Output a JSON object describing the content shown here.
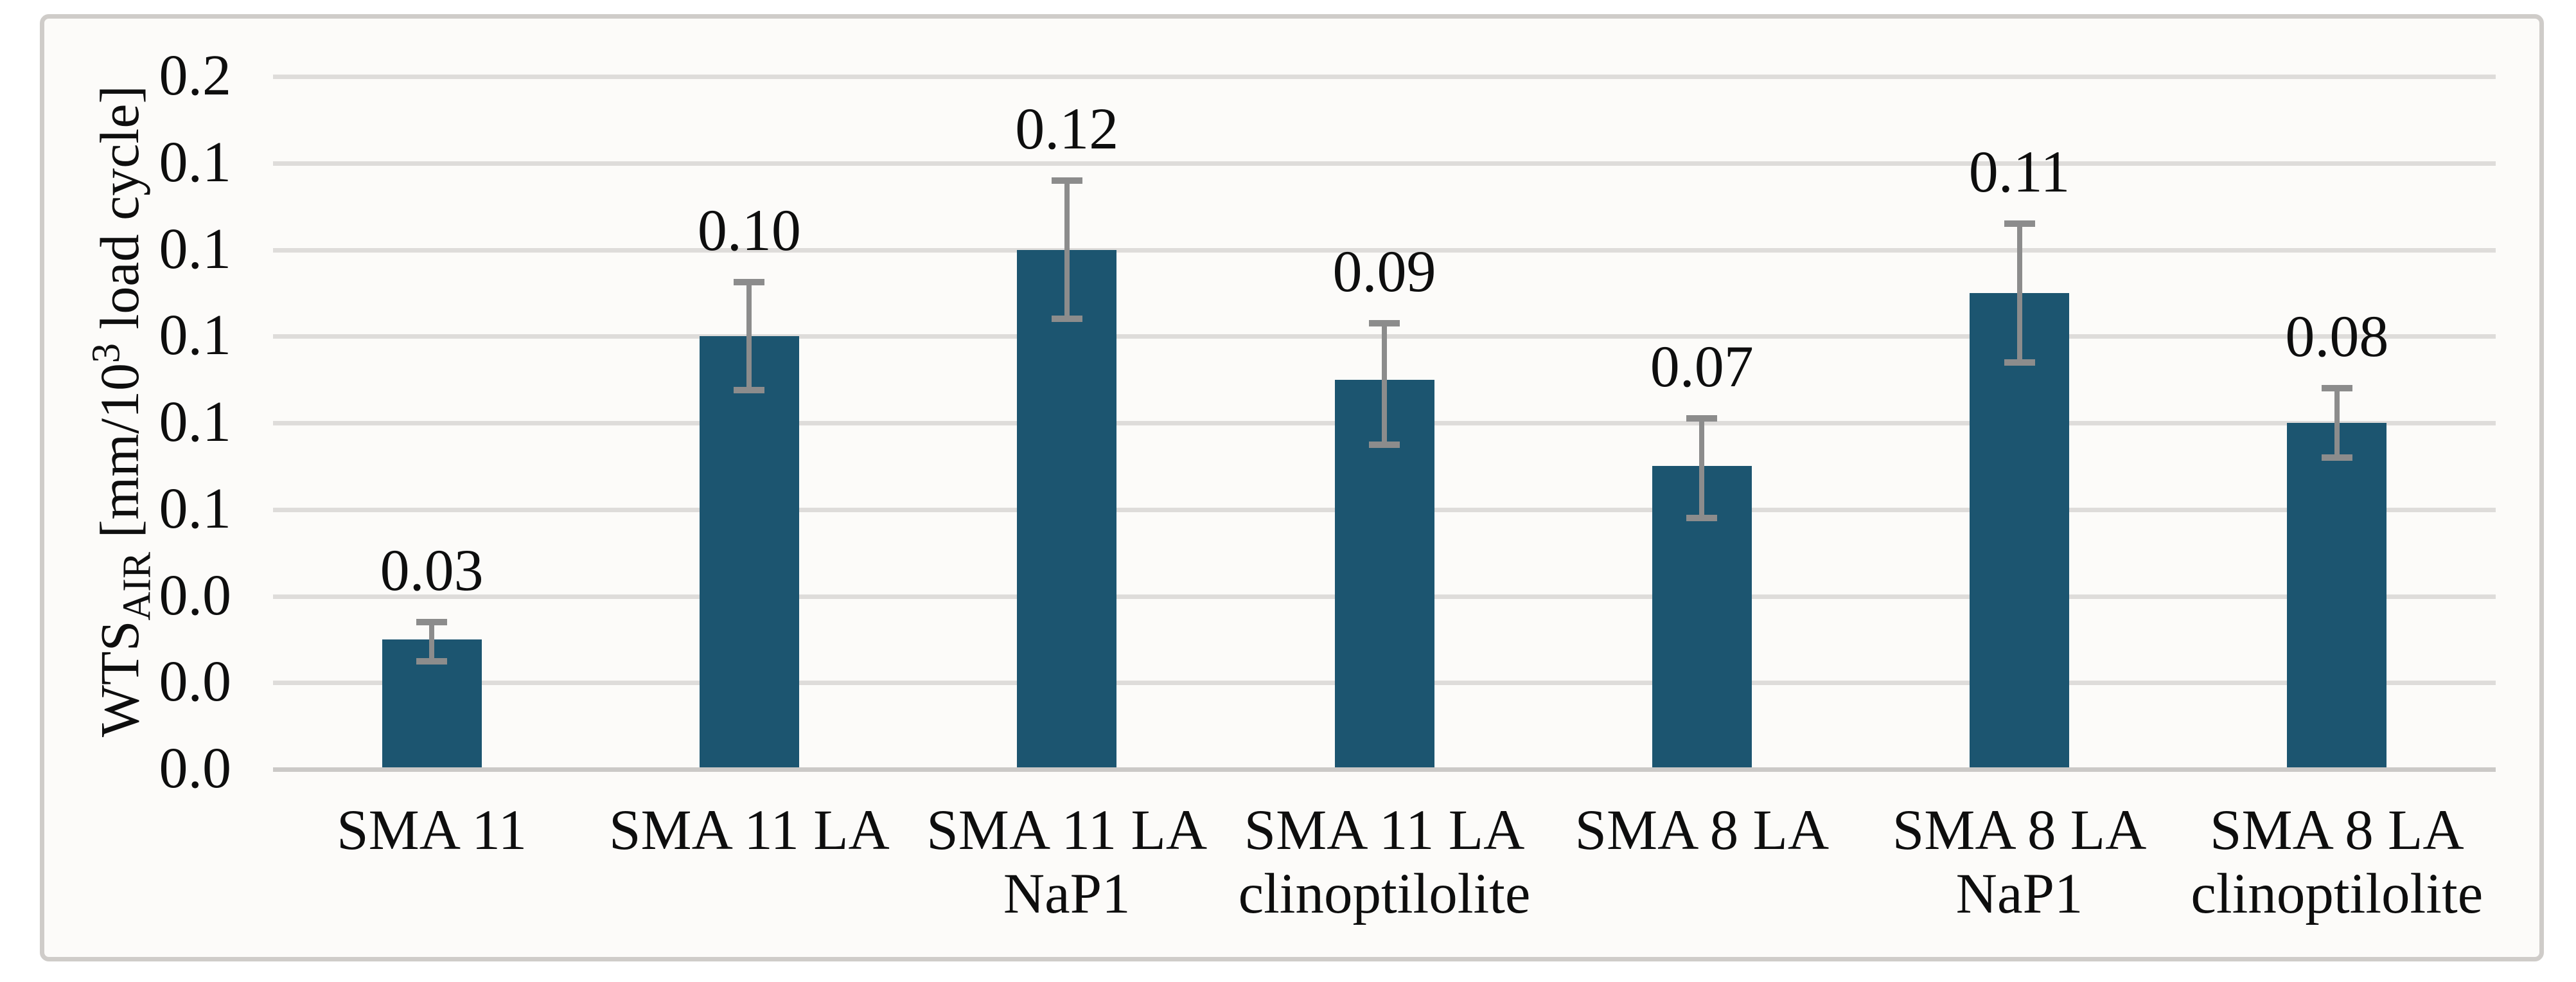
{
  "figure": {
    "background_color": "#fcfbf9",
    "frame_border_color": "#cfccc9"
  },
  "chart_data": {
    "type": "bar",
    "title": "",
    "xlabel": "",
    "ylabel_plain": "WTS_AIR [mm/10^3 load cycle]",
    "ylabel_parts": {
      "main": "WTS",
      "subscript": "AIR",
      "unit_pre": " [mm/10",
      "superscript": "3",
      "unit_post": " load cycle]"
    },
    "categories": [
      "SMA 11",
      "SMA 11 LA",
      "SMA 11 LA\nNaP1",
      "SMA 11 LA\nclinoptilolite",
      "SMA 8 LA",
      "SMA 8 LA\nNaP1",
      "SMA 8 LA\nclinoptilolite"
    ],
    "values": [
      0.03,
      0.1,
      0.12,
      0.09,
      0.07,
      0.11,
      0.08
    ],
    "data_labels": [
      "0.03",
      "0.10",
      "0.12",
      "0.09",
      "0.07",
      "0.11",
      "0.08"
    ],
    "error_up": [
      0.004,
      0.0125,
      0.016,
      0.013,
      0.011,
      0.016,
      0.008
    ],
    "error_down": [
      0.005,
      0.0125,
      0.016,
      0.015,
      0.012,
      0.016,
      0.008
    ],
    "ylim": [
      0,
      0.16
    ],
    "y_tick_step": 0.02,
    "y_tick_labels_top_to_bottom": [
      "0.2",
      "0.1",
      "0.1",
      "0.1",
      "0.1",
      "0.1",
      "0.0",
      "0.0",
      "0.0"
    ],
    "grid": true,
    "legend": "none",
    "bar_color": "#1c5570",
    "error_bar_color": "#8c8c8c",
    "gridline_color": "#dedcda",
    "axis_line_color": "#cbc9c7",
    "text_color": "#0e0e0e"
  }
}
